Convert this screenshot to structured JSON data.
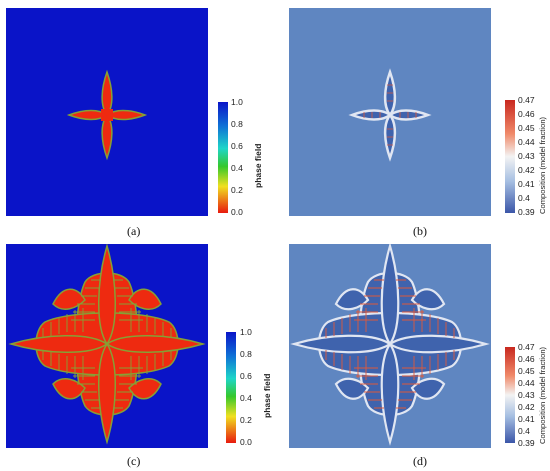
{
  "captions": {
    "a": "(a)",
    "b": "(b)",
    "c": "(c)",
    "d": "(d)"
  },
  "colorbars": {
    "phase": {
      "label": "phase field",
      "ticks": [
        "1.0",
        "0.8",
        "0.6",
        "0.4",
        "0.2",
        "0.0"
      ]
    },
    "composition": {
      "label": "Composition (model fraction)",
      "ticks": [
        "0.47",
        "0.46",
        "0.45",
        "0.44",
        "0.43",
        "0.42",
        "0.41",
        "0.4",
        "0.39"
      ]
    }
  },
  "colors": {
    "phase_background": "#0a14c8",
    "phase_dendrite": "#ee2a10",
    "phase_edge": "#86a035",
    "composition_background": "#5f86c1",
    "composition_dendrite": "#3f63ad",
    "composition_edge": "#e0e6f2",
    "composition_rich": "#de5a3c"
  }
}
